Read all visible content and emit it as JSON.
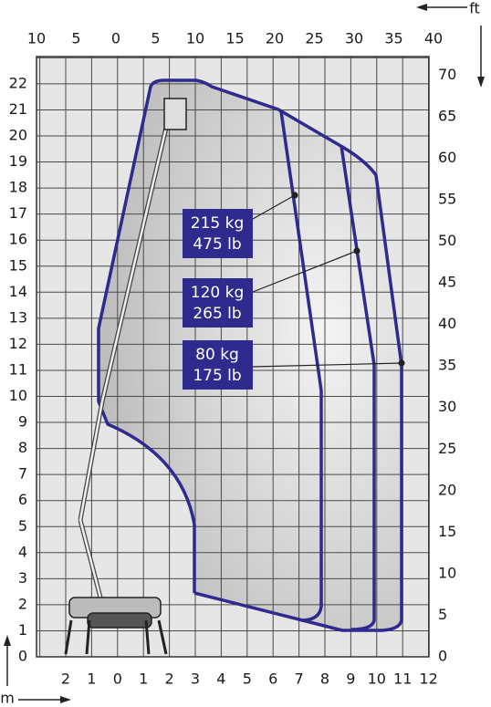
{
  "axes": {
    "top_unit": "ft",
    "top_ticks": [
      "10",
      "5",
      "0",
      "5",
      "10",
      "15",
      "20",
      "25",
      "30",
      "35",
      "40"
    ],
    "right_ticks": [
      "0",
      "5",
      "10",
      "15",
      "20",
      "25",
      "30",
      "35",
      "40",
      "45",
      "50",
      "55",
      "60",
      "65",
      "70"
    ],
    "left_unit": "m",
    "left_ticks": [
      "0",
      "1",
      "2",
      "3",
      "4",
      "5",
      "6",
      "7",
      "8",
      "9",
      "10",
      "11",
      "12",
      "13",
      "14",
      "15",
      "16",
      "17",
      "18",
      "19",
      "20",
      "21",
      "22"
    ],
    "bottom_ticks": [
      "2",
      "1",
      "0",
      "1",
      "2",
      "3",
      "4",
      "5",
      "6",
      "7",
      "8",
      "9",
      "10",
      "11",
      "12"
    ]
  },
  "loads": [
    {
      "kg": "215 kg",
      "lb": "475 lb"
    },
    {
      "kg": "120 kg",
      "lb": "265 lb"
    },
    {
      "kg": "80 kg",
      "lb": "175 lb"
    }
  ]
}
